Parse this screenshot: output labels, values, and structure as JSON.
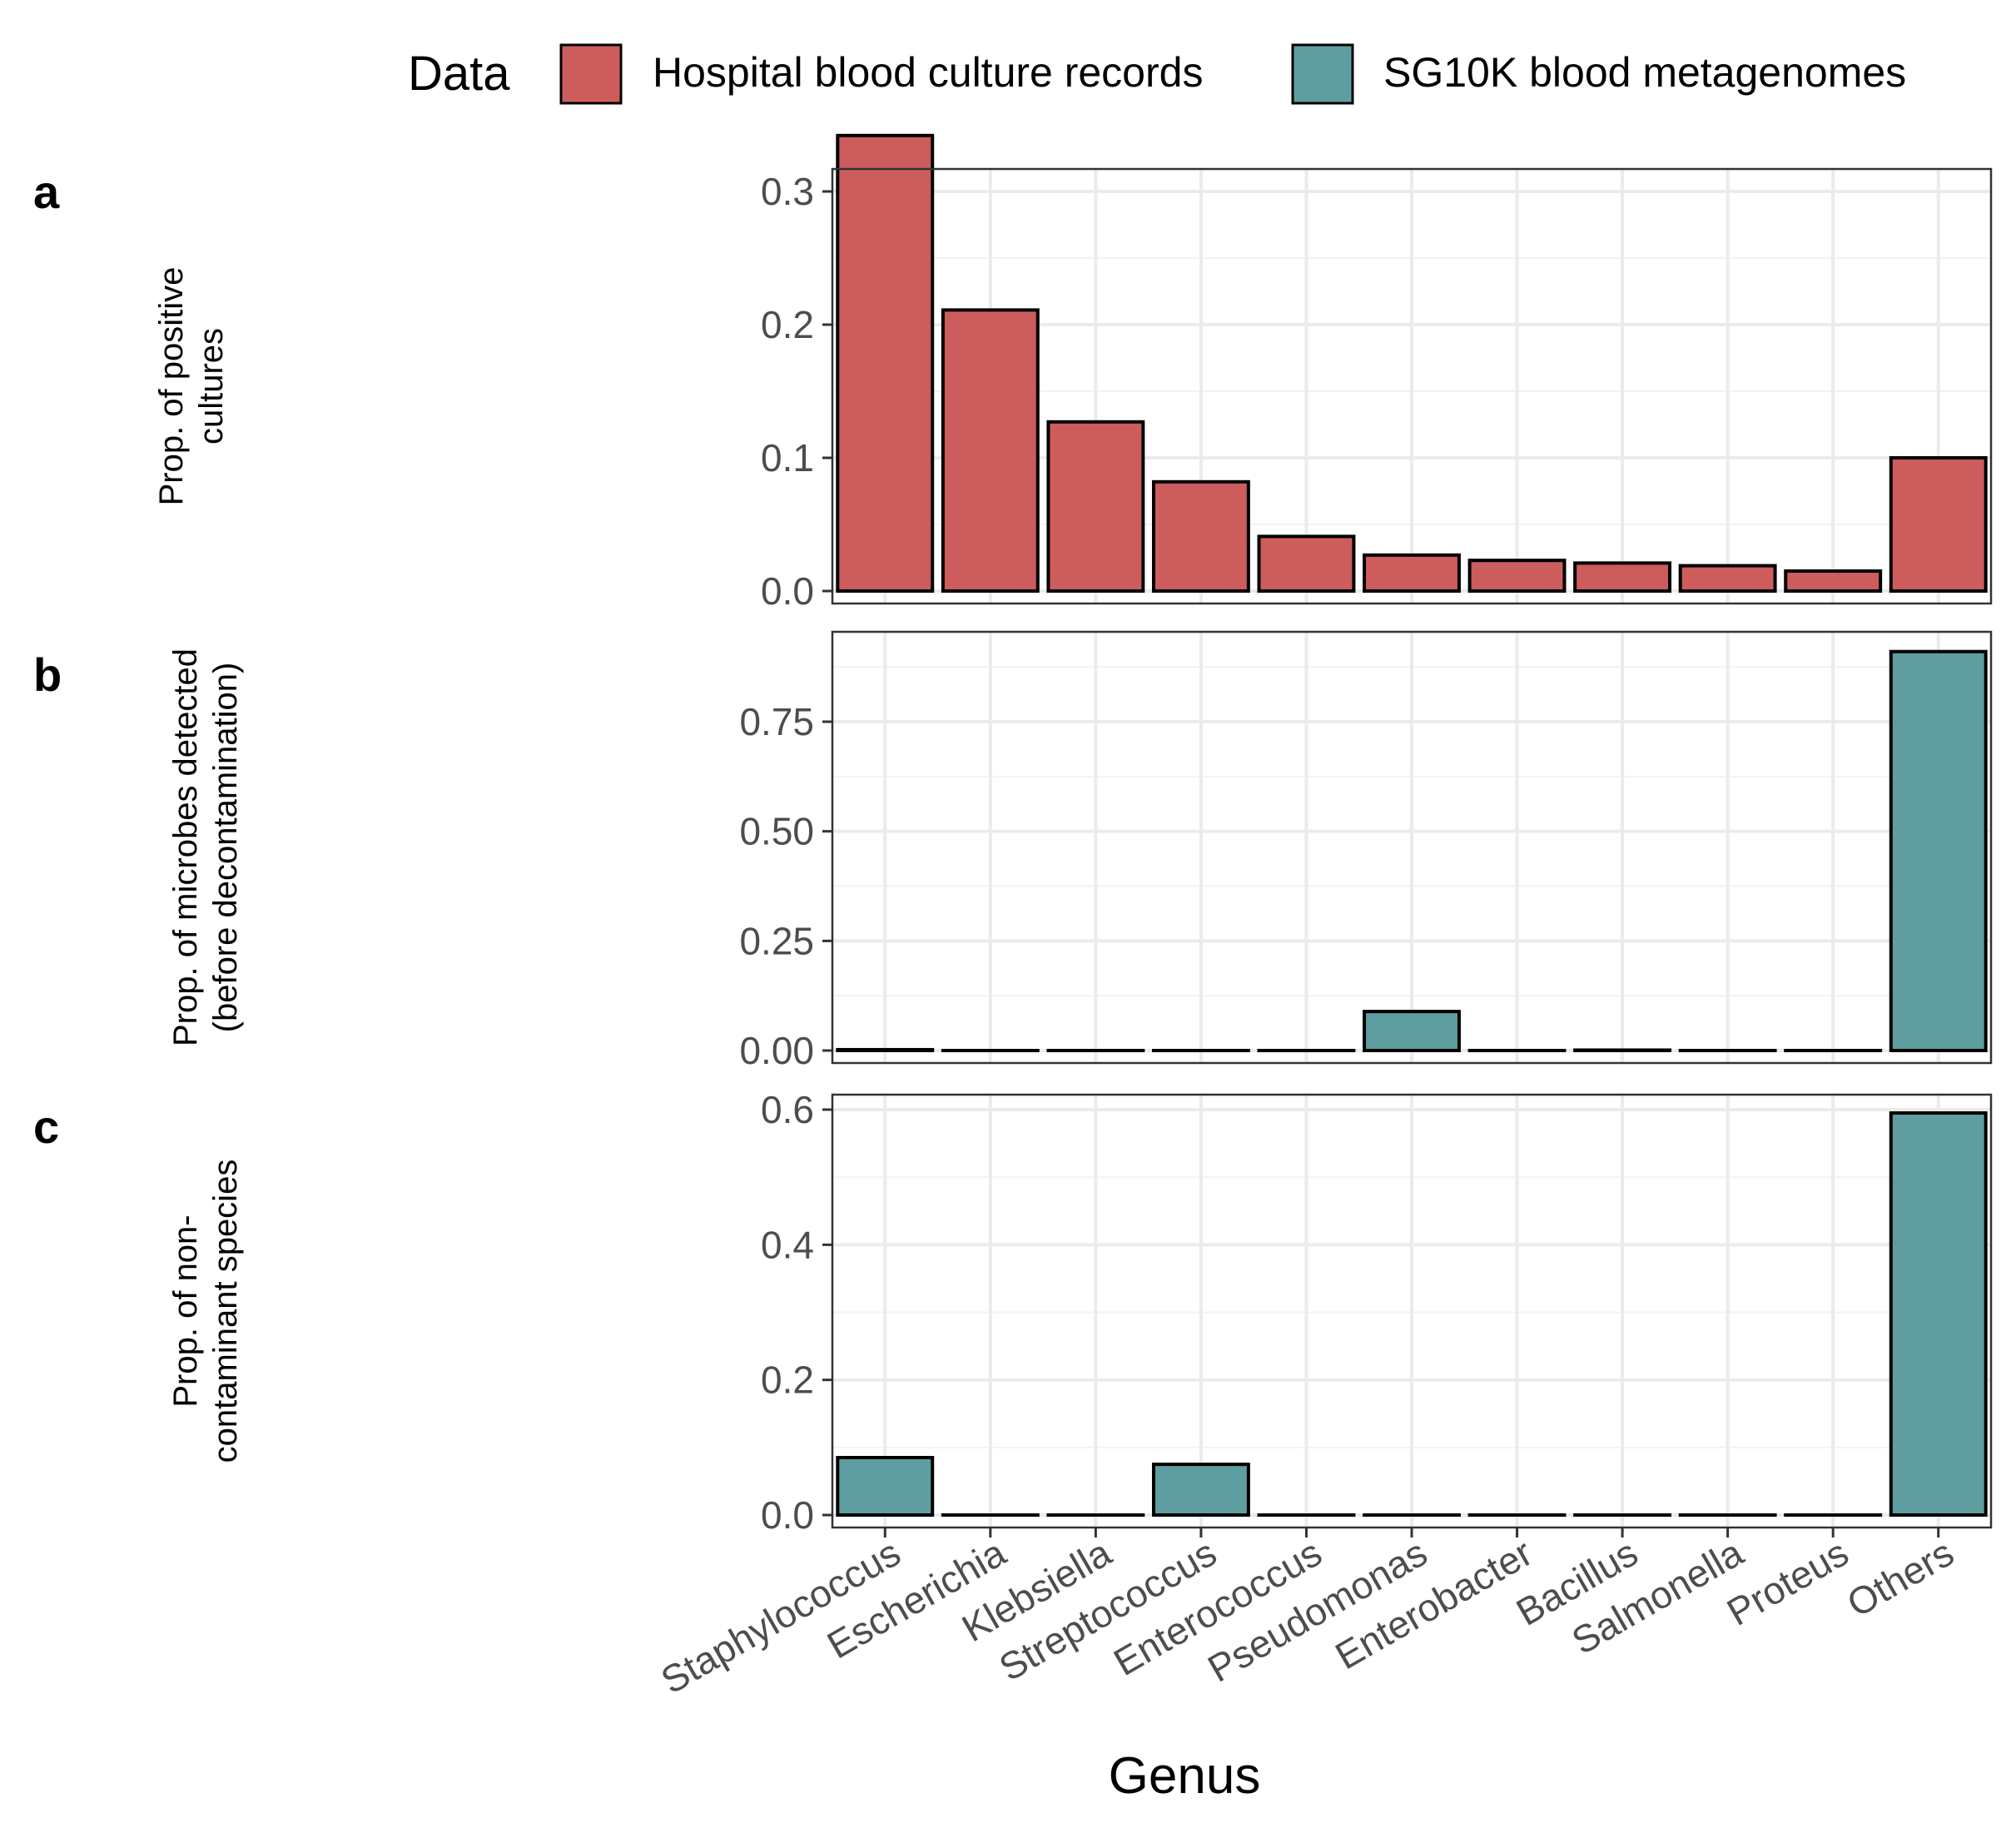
{
  "legend": {
    "title": "Data",
    "position": "top",
    "items": [
      {
        "label": "Hospital blood culture records",
        "color": "#CD5C5C"
      },
      {
        "label": "SG10K blood metagenomes",
        "color": "#5F9EA0"
      }
    ]
  },
  "xlabel": "Genus",
  "chart_data": [
    {
      "panel": "a",
      "type": "bar",
      "ylabel": [
        "Prop. of positive",
        "cultures"
      ],
      "series": [
        {
          "name": "Hospital blood culture records",
          "color": "#CD5C5C"
        }
      ],
      "categories": [
        "Staphylococcus",
        "Escherichia",
        "Klebsiella",
        "Streptococcus",
        "Enterococcus",
        "Pseudomonas",
        "Enterobacter",
        "Bacillus",
        "Salmonella",
        "Proteus",
        "Others"
      ],
      "values": [
        0.342,
        0.211,
        0.127,
        0.082,
        0.041,
        0.027,
        0.023,
        0.021,
        0.019,
        0.015,
        0.1
      ],
      "ylim": [
        0,
        0.35
      ],
      "yticks": [
        "0.0",
        "0.1",
        "0.2",
        "0.3"
      ],
      "grid": true
    },
    {
      "panel": "b",
      "type": "bar",
      "ylabel": [
        "Prop. of microbes detected",
        "(before decontamination)"
      ],
      "series": [
        {
          "name": "SG10K blood metagenomes",
          "color": "#5F9EA0"
        }
      ],
      "categories": [
        "Staphylococcus",
        "Escherichia",
        "Klebsiella",
        "Streptococcus",
        "Enterococcus",
        "Pseudomonas",
        "Enterobacter",
        "Bacillus",
        "Salmonella",
        "Proteus",
        "Others"
      ],
      "values": [
        0.002,
        0.0,
        0.0,
        0.0,
        0.0,
        0.089,
        0.0,
        0.001,
        0.0,
        0.0,
        0.91
      ],
      "ylim": [
        0,
        0.96
      ],
      "yticks": [
        "0.00",
        "0.25",
        "0.50",
        "0.75"
      ],
      "grid": true
    },
    {
      "panel": "c",
      "type": "bar",
      "ylabel": [
        "Prop. of non-",
        "contaminant species"
      ],
      "series": [
        {
          "name": "SG10K blood metagenomes",
          "color": "#5F9EA0"
        }
      ],
      "categories": [
        "Staphylococcus",
        "Escherichia",
        "Klebsiella",
        "Streptococcus",
        "Enterococcus",
        "Pseudomonas",
        "Enterobacter",
        "Bacillus",
        "Salmonella",
        "Proteus",
        "Others"
      ],
      "values": [
        0.085,
        0.0,
        0.0,
        0.075,
        0.0,
        0.0,
        0.0,
        0.0,
        0.0,
        0.0,
        0.595
      ],
      "ylim": [
        0,
        0.61
      ],
      "yticks": [
        "0.0",
        "0.2",
        "0.4",
        "0.6"
      ],
      "grid": true
    }
  ]
}
